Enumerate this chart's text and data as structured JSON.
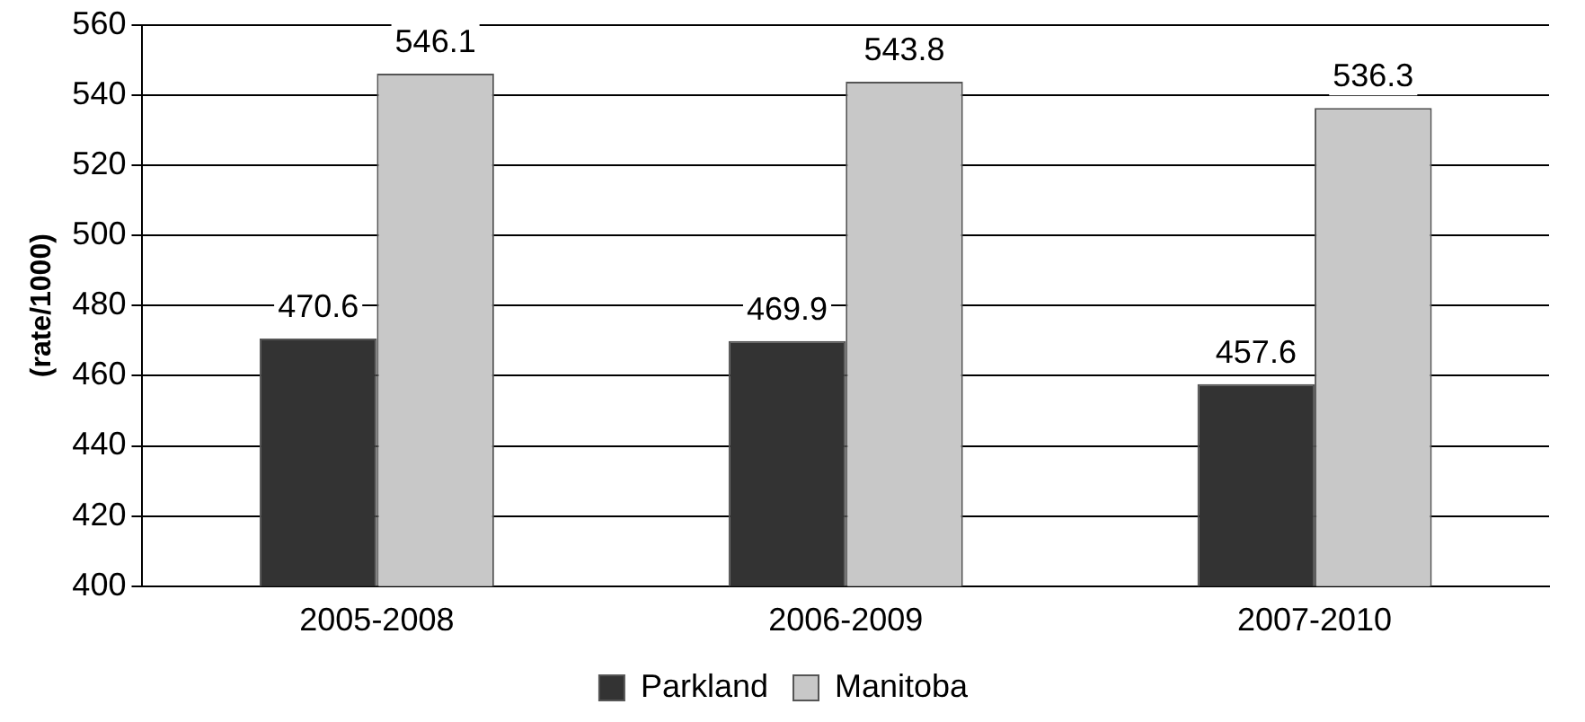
{
  "chart_data": {
    "type": "bar",
    "ylabel": "(rate/1000)",
    "categories": [
      "2005-2008",
      "2006-2009",
      "2007-2010"
    ],
    "series": [
      {
        "name": "Parkland",
        "color": "#333333",
        "values": [
          470.6,
          469.9,
          457.6
        ]
      },
      {
        "name": "Manitoba",
        "color": "#c8c8c8",
        "values": [
          546.1,
          543.8,
          536.3
        ]
      }
    ],
    "ylim": [
      400,
      560
    ],
    "yticks": [
      400,
      420,
      440,
      460,
      480,
      500,
      520,
      540,
      560
    ],
    "grid": "y",
    "legend": "bottom",
    "data_labels": true
  }
}
